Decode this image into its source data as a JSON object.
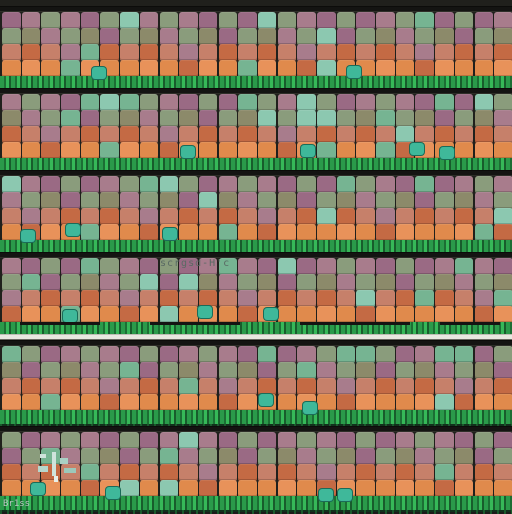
{
  "scene": {
    "palette": {
      "purple": "#9a6a84",
      "mauve": "#a87c8c",
      "sage": "#8a9c7c",
      "olive": "#8c8a6a",
      "salmon": "#c6806a",
      "orange": "#e08a4c",
      "peach": "#e8925a",
      "rust": "#c46a44",
      "mint": "#76b492",
      "aqua": "#8cc8b0",
      "grass": "#2a9a4a",
      "soil": "#20201c",
      "divider": "#e8e8e0"
    },
    "bands": 6,
    "columns": 26,
    "rows_per_band": 4
  },
  "overlay": {
    "scribble_text": "scrgsd-H'c",
    "hud_text": "Br1ss"
  },
  "icons": [
    "plant-sprite-icon",
    "cursor-icon"
  ]
}
